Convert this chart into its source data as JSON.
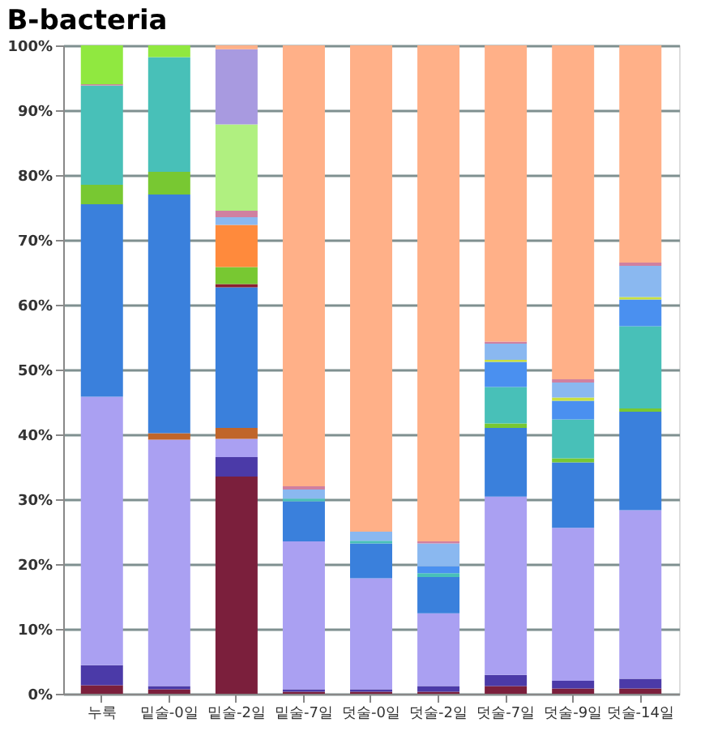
{
  "chart_data": {
    "type": "bar",
    "title": "B-bacteria",
    "stacked": true,
    "categories": [
      "누룩",
      "밑술-0일",
      "밑술-2일",
      "밑술-7일",
      "덧술-0일",
      "덧술-2일",
      "덧술-7일",
      "덧술-9일",
      "덧술-14일"
    ],
    "ylim": [
      0,
      100
    ],
    "yticks": [
      {
        "value": 0,
        "label": "0%"
      },
      {
        "value": 10,
        "label": "10%"
      },
      {
        "value": 20,
        "label": "20%"
      },
      {
        "value": 30,
        "label": "30%"
      },
      {
        "value": 40,
        "label": "40%"
      },
      {
        "value": 50,
        "label": "50%"
      },
      {
        "value": 60,
        "label": "60%"
      },
      {
        "value": 70,
        "label": "70%"
      },
      {
        "value": 80,
        "label": "80%"
      },
      {
        "value": 90,
        "label": "90%"
      },
      {
        "value": 100,
        "label": "100%"
      }
    ],
    "grid": "y",
    "legend": false,
    "series": [
      {
        "color": "#7b1f3c",
        "values": [
          1.3,
          0.7,
          33.5,
          0.3,
          0.3,
          0.3,
          1.2,
          0.8,
          0.8
        ]
      },
      {
        "color": "#4b3aa8",
        "values": [
          3.1,
          0.5,
          3.0,
          0.4,
          0.4,
          0.9,
          1.7,
          1.2,
          1.5
        ]
      },
      {
        "color": "#aaa0f2",
        "values": [
          41.4,
          38.0,
          2.8,
          22.8,
          17.1,
          11.2,
          27.5,
          23.6,
          26.0
        ]
      },
      {
        "color": "#c0652a",
        "values": [
          null,
          1.0,
          1.7,
          null,
          null,
          null,
          null,
          null,
          null
        ]
      },
      {
        "color": "#3a80dc",
        "values": [
          29.7,
          36.8,
          21.7,
          6.2,
          5.4,
          5.6,
          10.6,
          10.1,
          15.2
        ]
      },
      {
        "color": "#8b2030",
        "values": [
          null,
          null,
          0.5,
          null,
          null,
          null,
          null,
          null,
          null
        ]
      },
      {
        "color": "#78c832",
        "values": [
          3.0,
          3.5,
          2.6,
          null,
          null,
          null,
          0.7,
          0.6,
          0.5
        ]
      },
      {
        "color": "#ff8a3c",
        "values": [
          null,
          null,
          6.5,
          null,
          null,
          null,
          null,
          null,
          null
        ]
      },
      {
        "color": "#48c0b8",
        "values": [
          15.3,
          17.7,
          null,
          0.4,
          0.4,
          0.6,
          5.6,
          6.0,
          12.7
        ]
      },
      {
        "color": "#4a90f0",
        "values": [
          null,
          null,
          null,
          null,
          null,
          1.1,
          3.9,
          2.9,
          4.1
        ]
      },
      {
        "color": "#c8e040",
        "values": [
          null,
          null,
          null,
          null,
          null,
          null,
          0.3,
          0.5,
          0.4
        ]
      },
      {
        "color": "#8ab8f0",
        "values": [
          null,
          null,
          1.2,
          1.4,
          1.4,
          3.5,
          2.5,
          2.3,
          4.8
        ]
      },
      {
        "color": "#d080a0",
        "values": [
          0.2,
          null,
          1.0,
          0.5,
          null,
          0.3,
          0.3,
          0.5,
          0.5
        ]
      },
      {
        "color": "#b0f080",
        "values": [
          null,
          null,
          13.3,
          null,
          null,
          null,
          null,
          null,
          null
        ]
      },
      {
        "color": "#a89ae0",
        "values": [
          null,
          null,
          11.6,
          null,
          null,
          null,
          null,
          null,
          null
        ]
      },
      {
        "color": "#90e840",
        "values": [
          6.0,
          1.8,
          null,
          null,
          null,
          null,
          null,
          null,
          null
        ]
      },
      {
        "color": "#ffb088",
        "values": [
          null,
          null,
          0.6,
          68.0,
          75.0,
          76.5,
          45.7,
          51.5,
          33.5
        ]
      }
    ]
  }
}
